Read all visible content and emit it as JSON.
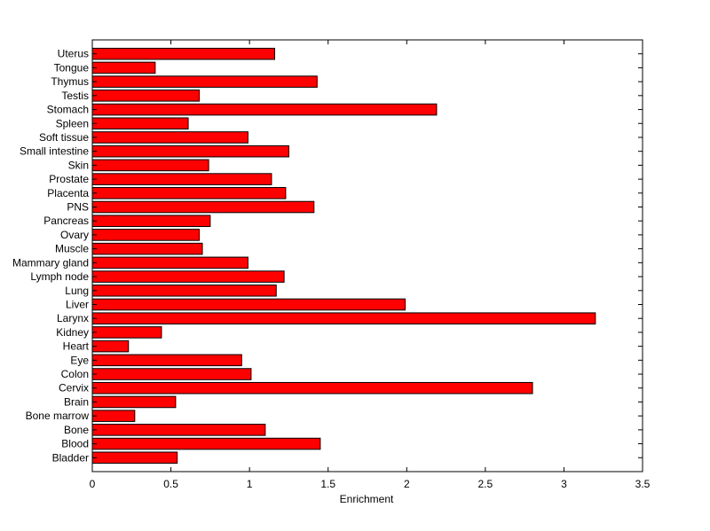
{
  "chart_data": {
    "type": "bar",
    "orientation": "horizontal",
    "title": "",
    "xlabel": "Enrichment",
    "ylabel": "",
    "xlim": [
      0,
      3.5
    ],
    "xticks": [
      0,
      0.5,
      1,
      1.5,
      2,
      2.5,
      3,
      3.5
    ],
    "xtick_labels": [
      "0",
      "0.5",
      "1",
      "1.5",
      "2",
      "2.5",
      "3",
      "3.5"
    ],
    "grid": false,
    "legend": "none",
    "bar_color": "#ff0000",
    "edge_color": "#000000",
    "categories": [
      "Bladder",
      "Blood",
      "Bone",
      "Bone marrow",
      "Brain",
      "Cervix",
      "Colon",
      "Eye",
      "Heart",
      "Kidney",
      "Larynx",
      "Liver",
      "Lung",
      "Lymph node",
      "Mammary gland",
      "Muscle",
      "Ovary",
      "Pancreas",
      "PNS",
      "Placenta",
      "Prostate",
      "Skin",
      "Small intestine",
      "Soft tissue",
      "Spleen",
      "Stomach",
      "Testis",
      "Thymus",
      "Tongue",
      "Uterus"
    ],
    "values": [
      0.54,
      1.45,
      1.1,
      0.27,
      0.53,
      2.8,
      1.01,
      0.95,
      0.23,
      0.44,
      3.2,
      1.99,
      1.17,
      1.22,
      0.99,
      0.7,
      0.68,
      0.75,
      1.41,
      1.23,
      1.14,
      0.74,
      1.25,
      0.99,
      0.61,
      2.19,
      0.68,
      1.43,
      0.4,
      1.16
    ]
  }
}
